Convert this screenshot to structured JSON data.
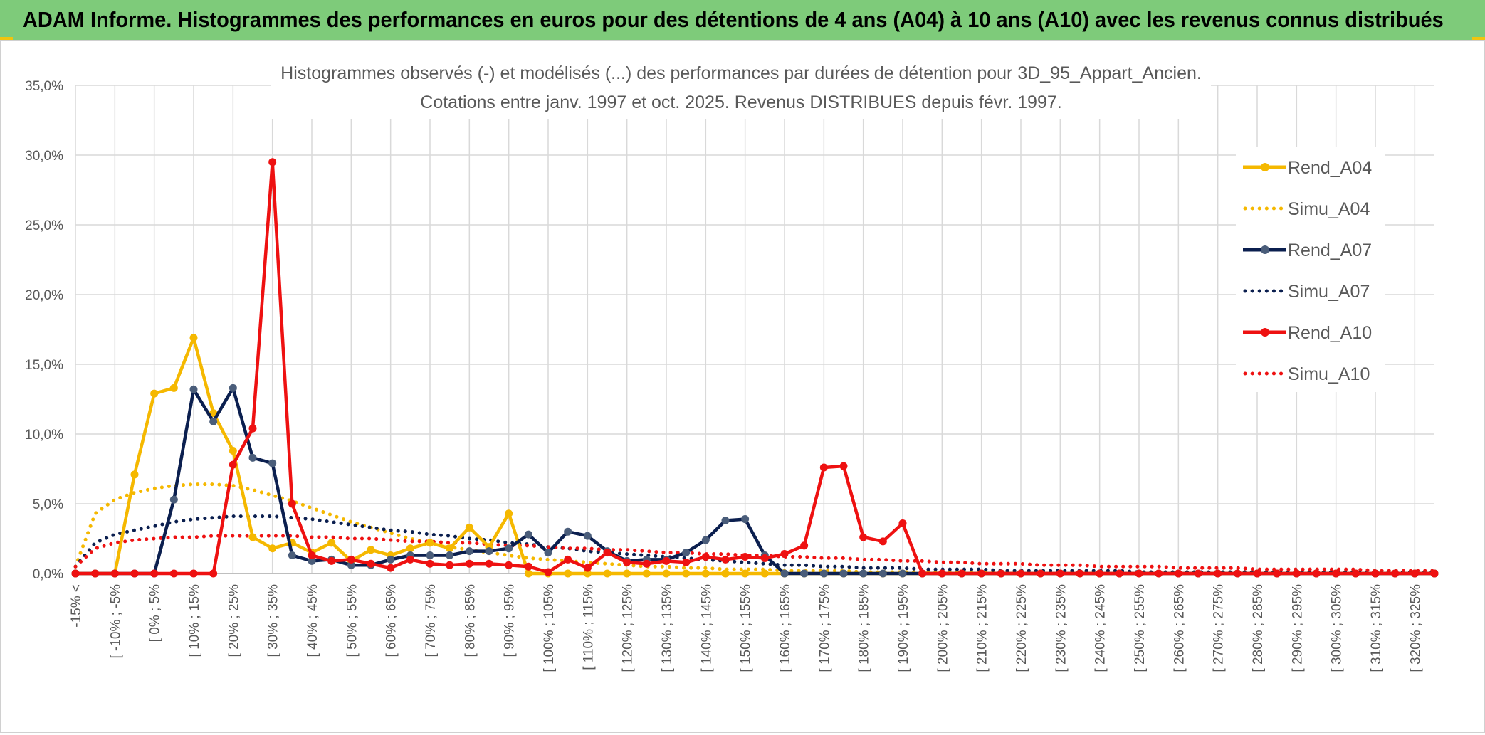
{
  "header": {
    "title": "ADAM Informe. Histogrammes des performances en euros pour des détentions de 4 ans (A04) à 10 ans (A10) avec les revenus connus distribués"
  },
  "colors": {
    "yellow": "#f5b800",
    "navy": "#0b1f4f",
    "red": "#ee1111",
    "header_bg": "#7ecb7a",
    "grid": "#d9d9d9",
    "text": "#595959"
  },
  "chart_data": {
    "type": "line",
    "title": [
      "Histogrammes observés (-) et modélisés (...) des performances par durées de détention pour 3D_95_Appart_Ancien.",
      "Cotations entre janv. 1997 et oct. 2025. Revenus DISTRIBUES depuis févr. 1997."
    ],
    "xlabel": "",
    "ylabel": "",
    "ylim": [
      0,
      35
    ],
    "yticks": [
      "0,0%",
      "5,0%",
      "10,0%",
      "15,0%",
      "20,0%",
      "25,0%",
      "30,0%",
      "35,0%"
    ],
    "tick_labels": [
      "-15% <",
      "[ -10% ; -5%",
      "[ 0% ; 5%",
      "[ 10% ; 15%",
      "[ 20% ; 25%",
      "[ 30% ; 35%",
      "[ 40% ; 45%",
      "[ 50% ; 55%",
      "[ 60% ; 65%",
      "[ 70% ; 75%",
      "[ 80% ; 85%",
      "[ 90% ; 95%",
      "[ 100% ; 105%",
      "[ 110% ; 115%",
      "[ 120% ; 125%",
      "[ 130% ; 135%",
      "[ 140% ; 145%",
      "[ 150% ; 155%",
      "[ 160% ; 165%",
      "[ 170% ; 175%",
      "[ 180% ; 185%",
      "[ 190% ; 195%",
      "[ 200% ; 205%",
      "[ 210% ; 215%",
      "[ 220% ; 225%",
      "[ 230% ; 235%",
      "[ 240% ; 245%",
      "[ 250% ; 255%",
      "[ 260% ; 265%",
      "[ 270% ; 275%",
      "[ 280% ; 285%",
      "[ 290% ; 295%",
      "[ 300% ; 305%",
      "[ 310% ; 315%",
      "[ 320% ; 325%"
    ],
    "n_categories": 70,
    "legend_position": "right",
    "series": [
      {
        "name": "Rend_A04",
        "style": "solid",
        "color": "#f5b800",
        "values": [
          0,
          0,
          0,
          7.1,
          12.9,
          13.3,
          16.9,
          11.5,
          8.8,
          2.6,
          1.8,
          2.2,
          1.5,
          2.2,
          0.9,
          1.7,
          1.3,
          1.8,
          2.2,
          1.8,
          3.3,
          1.9,
          4.3,
          0,
          0,
          0,
          0,
          0,
          0,
          0,
          0,
          0,
          0,
          0,
          0,
          0,
          0,
          0,
          0,
          0,
          0,
          0,
          0,
          0,
          0,
          0,
          0,
          0,
          0,
          0,
          0,
          0,
          0,
          0,
          0,
          0,
          0,
          0,
          0,
          0,
          0,
          0,
          0,
          0,
          0,
          0,
          0,
          0,
          0,
          0
        ]
      },
      {
        "name": "Simu_A04",
        "style": "dotted",
        "color": "#f5b800",
        "values": [
          0.5,
          4.3,
          5.3,
          5.8,
          6.1,
          6.3,
          6.4,
          6.4,
          6.3,
          6.0,
          5.6,
          5.2,
          4.7,
          4.2,
          3.7,
          3.3,
          2.9,
          2.5,
          2.2,
          1.9,
          1.7,
          1.5,
          1.3,
          1.1,
          1.0,
          0.9,
          0.8,
          0.7,
          0.6,
          0.5,
          0.5,
          0.4,
          0.4,
          0.3,
          0.3,
          0.3,
          0.2,
          0.2,
          0.2,
          0.2,
          0.1,
          0.1,
          0.1,
          0.1,
          0.1,
          0.1,
          0.1,
          0.1,
          0.1,
          0.1,
          0.1,
          0.1,
          0.1,
          0.1,
          0.1,
          0.1,
          0.1,
          0.1,
          0.1,
          0.1,
          0.1,
          0.1,
          0.1,
          0.1,
          0.1,
          0.1,
          0.1,
          0.1,
          0.1,
          0.1
        ]
      },
      {
        "name": "Rend_A07",
        "style": "solid",
        "color": "#0b1f4f",
        "values": [
          0,
          0,
          0,
          0,
          0,
          5.3,
          13.2,
          10.9,
          13.3,
          8.3,
          7.9,
          1.3,
          0.9,
          1.0,
          0.6,
          0.6,
          1.0,
          1.3,
          1.3,
          1.3,
          1.6,
          1.6,
          1.8,
          2.8,
          1.5,
          3.0,
          2.7,
          1.6,
          0.9,
          1.0,
          1.0,
          1.5,
          2.4,
          3.8,
          3.9,
          1.3,
          0,
          0,
          0,
          0,
          0,
          0,
          0,
          0,
          0,
          0,
          0,
          0,
          0,
          0,
          0,
          0,
          0,
          0,
          0,
          0,
          0,
          0,
          0,
          0,
          0,
          0,
          0,
          0,
          0,
          0,
          0,
          0,
          0,
          0
        ]
      },
      {
        "name": "Simu_A07",
        "style": "dotted",
        "color": "#0b1f4f",
        "values": [
          0.5,
          2.2,
          2.8,
          3.1,
          3.4,
          3.7,
          3.9,
          4.0,
          4.1,
          4.1,
          4.1,
          4.0,
          3.9,
          3.7,
          3.5,
          3.3,
          3.1,
          3.0,
          2.8,
          2.7,
          2.5,
          2.4,
          2.2,
          2.1,
          1.9,
          1.8,
          1.6,
          1.5,
          1.4,
          1.3,
          1.2,
          1.1,
          1.0,
          0.9,
          0.8,
          0.7,
          0.6,
          0.6,
          0.5,
          0.5,
          0.4,
          0.4,
          0.4,
          0.3,
          0.3,
          0.3,
          0.3,
          0.2,
          0.2,
          0.2,
          0.2,
          0.2,
          0.2,
          0.2,
          0.1,
          0.1,
          0.1,
          0.1,
          0.1,
          0.1,
          0.1,
          0.1,
          0.1,
          0.1,
          0.1,
          0.1,
          0.1,
          0.1,
          0.1,
          0.1
        ]
      },
      {
        "name": "Rend_A10",
        "style": "solid",
        "color": "#ee1111",
        "values": [
          0,
          0,
          0,
          0,
          0,
          0,
          0,
          0,
          7.8,
          10.4,
          29.5,
          5.0,
          1.3,
          0.9,
          1.0,
          0.7,
          0.4,
          1.0,
          0.7,
          0.6,
          0.7,
          0.7,
          0.6,
          0.5,
          0.1,
          1.0,
          0.4,
          1.5,
          0.8,
          0.7,
          0.9,
          0.8,
          1.2,
          1.0,
          1.2,
          1.1,
          1.4,
          2.0,
          7.6,
          7.7,
          2.6,
          2.3,
          3.6,
          0,
          0,
          0,
          0,
          0,
          0,
          0,
          0,
          0,
          0,
          0,
          0,
          0,
          0,
          0,
          0,
          0,
          0,
          0,
          0,
          0,
          0,
          0,
          0,
          0,
          0,
          0
        ]
      },
      {
        "name": "Simu_A10",
        "style": "dotted",
        "color": "#ee1111",
        "values": [
          0.5,
          1.8,
          2.2,
          2.4,
          2.5,
          2.6,
          2.6,
          2.7,
          2.7,
          2.7,
          2.7,
          2.7,
          2.6,
          2.6,
          2.5,
          2.5,
          2.4,
          2.3,
          2.3,
          2.2,
          2.2,
          2.1,
          2.0,
          2.0,
          1.9,
          1.8,
          1.8,
          1.7,
          1.7,
          1.6,
          1.5,
          1.5,
          1.4,
          1.4,
          1.3,
          1.3,
          1.2,
          1.2,
          1.1,
          1.1,
          1.0,
          1.0,
          0.9,
          0.9,
          0.8,
          0.8,
          0.7,
          0.7,
          0.7,
          0.6,
          0.6,
          0.6,
          0.5,
          0.5,
          0.5,
          0.5,
          0.4,
          0.4,
          0.4,
          0.4,
          0.3,
          0.3,
          0.3,
          0.3,
          0.3,
          0.3,
          0.2,
          0.2,
          0.2,
          0.2
        ]
      }
    ]
  }
}
